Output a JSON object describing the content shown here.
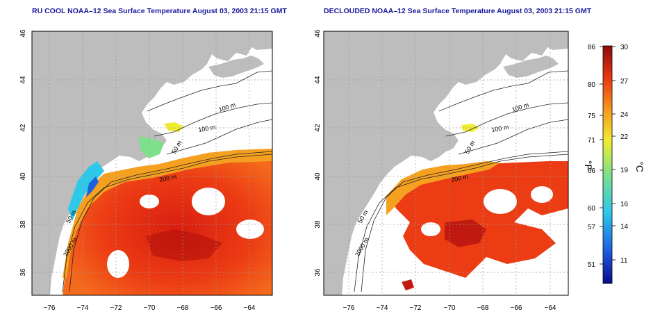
{
  "panels": [
    {
      "title": "RU COOL NOAA–12 Sea Surface Temperature August 03, 2003 21:15 GMT",
      "contour_labels": [
        "100 m",
        "100 m",
        "50 m",
        "200 m",
        "50 m",
        "2000 m"
      ]
    },
    {
      "title": "DECLOUDED NOAA–12 Sea Surface Temperature August 03, 2003 21:15 GMT",
      "contour_labels": [
        "100 m",
        "100 m",
        "50 m",
        "200 m",
        "50 m",
        "2000 m"
      ]
    }
  ],
  "axes": {
    "x_ticks": [
      "−76",
      "−74",
      "−72",
      "−70",
      "−68",
      "−66",
      "−64"
    ],
    "y_ticks": [
      "36",
      "38",
      "40",
      "42",
      "44",
      "46"
    ]
  },
  "colorbar": {
    "unit_f": "°F",
    "unit_c": "°C",
    "f_ticks": [
      "86",
      "80",
      "75",
      "71",
      "66",
      "60",
      "57",
      "51"
    ],
    "c_ticks": [
      "30",
      "27",
      "24",
      "22",
      "19",
      "16",
      "14",
      "11"
    ],
    "colors": [
      "#0a0a8c",
      "#1e5fe0",
      "#2ec8e8",
      "#7ee08a",
      "#f0ec30",
      "#f6a020",
      "#ea3a12",
      "#8c0a0a"
    ]
  }
}
